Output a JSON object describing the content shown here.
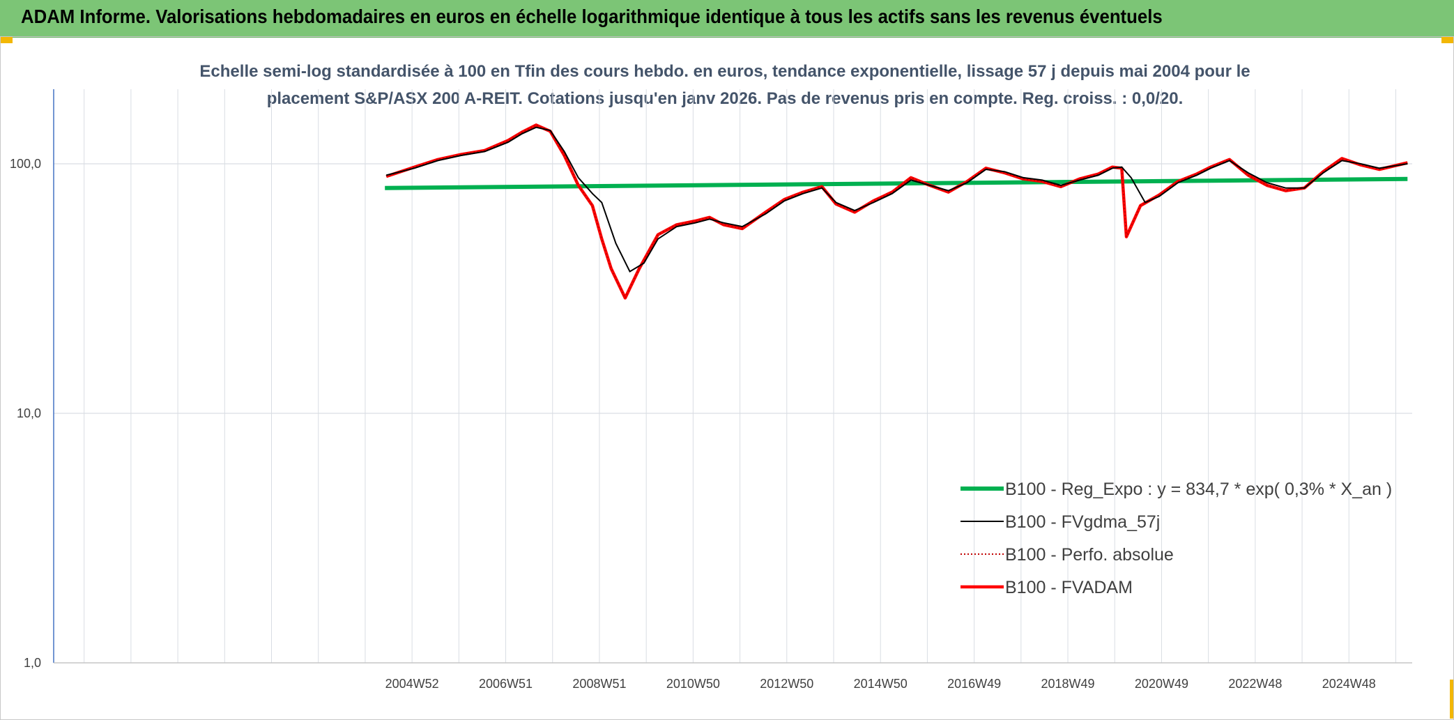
{
  "header": {
    "title": "ADAM Informe. Valorisations hebdomadaires en euros en échelle logarithmique identique à tous les actifs sans les revenus éventuels"
  },
  "colors": {
    "header_bg": "#7cc576",
    "corner_accent": "#f2b705",
    "regression": "#00b050",
    "fvgdma": "#000000",
    "perfo": "#c00000",
    "fvadam": "#ff0000",
    "grid": "#d9dde3",
    "axis": "#4472c4"
  },
  "chart_data": {
    "type": "line",
    "title_line1": "Echelle semi-log standardisée à 100 en Tfin des cours hebdo. en euros, tendance exponentielle, lissage 57 j depuis mai 2004 pour le",
    "title_line2": "placement S&P/ASX 200 A-REIT. Cotations jusqu'en janv 2026. Pas de revenus pris en compte. Reg. croiss. : 0,0/20.",
    "y_scale": "log",
    "ylim": [
      1,
      200
    ],
    "y_ticks": [
      {
        "value": 1,
        "label": "1,0"
      },
      {
        "value": 10,
        "label": "10,0"
      },
      {
        "value": 100,
        "label": "100,0"
      }
    ],
    "xlim": [
      1997.3,
      2026.3
    ],
    "x_ticks": [
      {
        "value": 2004.95,
        "label": "2004W52"
      },
      {
        "value": 2006.95,
        "label": "2006W51"
      },
      {
        "value": 2008.95,
        "label": "2008W51"
      },
      {
        "value": 2010.95,
        "label": "2010W50"
      },
      {
        "value": 2012.95,
        "label": "2012W50"
      },
      {
        "value": 2014.95,
        "label": "2014W50"
      },
      {
        "value": 2016.95,
        "label": "2016W49"
      },
      {
        "value": 2018.95,
        "label": "2018W49"
      },
      {
        "value": 2020.95,
        "label": "2020W49"
      },
      {
        "value": 2022.95,
        "label": "2022W48"
      },
      {
        "value": 2024.95,
        "label": "2024W48"
      }
    ],
    "grid": true,
    "legend_position": "bottom-right",
    "series": [
      {
        "name": "B100 - Reg_Expo : y = 834,7 * exp( 0,3% *  X_an )",
        "key": "regression",
        "style": "solid-thick",
        "x": [
          2004.37,
          2026.2
        ],
        "y": [
          80.0,
          87.0
        ]
      },
      {
        "name": "B100 - FVgdma_57j",
        "key": "fvgdma",
        "style": "solid-thin",
        "x": [
          2004.4,
          2005.0,
          2005.5,
          2006.0,
          2006.5,
          2007.0,
          2007.3,
          2007.6,
          2007.9,
          2008.2,
          2008.5,
          2008.8,
          2009.0,
          2009.3,
          2009.6,
          2009.9,
          2010.2,
          2010.6,
          2011.0,
          2011.3,
          2011.6,
          2012.0,
          2012.5,
          2012.9,
          2013.3,
          2013.7,
          2014.0,
          2014.4,
          2014.8,
          2015.2,
          2015.6,
          2016.0,
          2016.4,
          2016.8,
          2017.2,
          2017.6,
          2018.0,
          2018.4,
          2018.8,
          2019.2,
          2019.6,
          2019.9,
          2020.1,
          2020.3,
          2020.6,
          2020.9,
          2021.3,
          2021.7,
          2022.0,
          2022.4,
          2022.8,
          2023.2,
          2023.6,
          2024.0,
          2024.4,
          2024.8,
          2025.2,
          2025.6,
          2026.2
        ],
        "y": [
          90,
          96,
          103,
          108,
          112,
          122,
          132,
          140,
          136,
          112,
          88,
          76,
          70,
          48,
          37,
          40,
          50,
          56,
          58,
          60,
          58,
          56,
          63,
          71,
          76,
          80,
          70,
          65,
          70,
          76,
          86,
          82,
          78,
          84,
          95,
          93,
          88,
          86,
          82,
          86,
          90,
          96,
          97,
          88,
          70,
          74,
          84,
          90,
          96,
          103,
          92,
          84,
          80,
          80,
          92,
          103,
          100,
          96,
          100
        ]
      },
      {
        "name": "B100 - Perfo. absolue",
        "key": "perfo",
        "style": "dotted",
        "x": [
          2004.4,
          2005.0,
          2005.5,
          2006.0,
          2006.5,
          2007.0,
          2007.3,
          2007.6,
          2007.9,
          2008.2,
          2008.5,
          2008.8,
          2009.0,
          2009.2,
          2009.5,
          2009.8,
          2010.2,
          2010.6,
          2011.0,
          2011.3,
          2011.6,
          2012.0,
          2012.5,
          2012.9,
          2013.3,
          2013.7,
          2014.0,
          2014.4,
          2014.8,
          2015.2,
          2015.6,
          2016.0,
          2016.4,
          2016.8,
          2017.2,
          2017.6,
          2018.0,
          2018.4,
          2018.8,
          2019.2,
          2019.6,
          2019.9,
          2020.1,
          2020.2,
          2020.5,
          2020.9,
          2021.3,
          2021.7,
          2022.0,
          2022.4,
          2022.8,
          2023.2,
          2023.6,
          2024.0,
          2024.4,
          2024.8,
          2025.2,
          2025.6,
          2026.2
        ],
        "y": [
          89,
          97,
          104,
          109,
          113,
          124,
          134,
          143,
          135,
          108,
          82,
          68,
          50,
          38,
          29,
          38,
          52,
          57,
          59,
          61,
          57,
          55,
          64,
          72,
          77,
          81,
          69,
          64,
          71,
          77,
          88,
          82,
          77,
          85,
          96,
          92,
          87,
          85,
          81,
          87,
          91,
          97,
          96,
          51,
          68,
          75,
          85,
          91,
          97,
          104,
          90,
          82,
          78,
          80,
          93,
          105,
          99,
          95,
          101
        ]
      },
      {
        "name": "B100 - FVADAM",
        "key": "fvadam",
        "style": "solid-thick",
        "x": [
          2004.4,
          2005.0,
          2005.5,
          2006.0,
          2006.5,
          2007.0,
          2007.3,
          2007.6,
          2007.9,
          2008.2,
          2008.5,
          2008.8,
          2009.0,
          2009.2,
          2009.5,
          2009.8,
          2010.2,
          2010.6,
          2011.0,
          2011.3,
          2011.6,
          2012.0,
          2012.5,
          2012.9,
          2013.3,
          2013.7,
          2014.0,
          2014.4,
          2014.8,
          2015.2,
          2015.6,
          2016.0,
          2016.4,
          2016.8,
          2017.2,
          2017.6,
          2018.0,
          2018.4,
          2018.8,
          2019.2,
          2019.6,
          2019.9,
          2020.1,
          2020.2,
          2020.5,
          2020.9,
          2021.3,
          2021.7,
          2022.0,
          2022.4,
          2022.8,
          2023.2,
          2023.6,
          2024.0,
          2024.4,
          2024.8,
          2025.2,
          2025.6,
          2026.2
        ],
        "y": [
          89,
          97,
          104,
          109,
          113,
          124,
          134,
          143,
          135,
          108,
          82,
          68,
          50,
          38,
          29,
          38,
          52,
          57,
          59,
          61,
          57,
          55,
          64,
          72,
          77,
          81,
          69,
          64,
          71,
          77,
          88,
          82,
          77,
          85,
          96,
          92,
          87,
          85,
          81,
          87,
          91,
          97,
          96,
          51,
          68,
          75,
          85,
          91,
          97,
          104,
          90,
          82,
          78,
          80,
          93,
          105,
          99,
          95,
          101
        ]
      }
    ]
  }
}
